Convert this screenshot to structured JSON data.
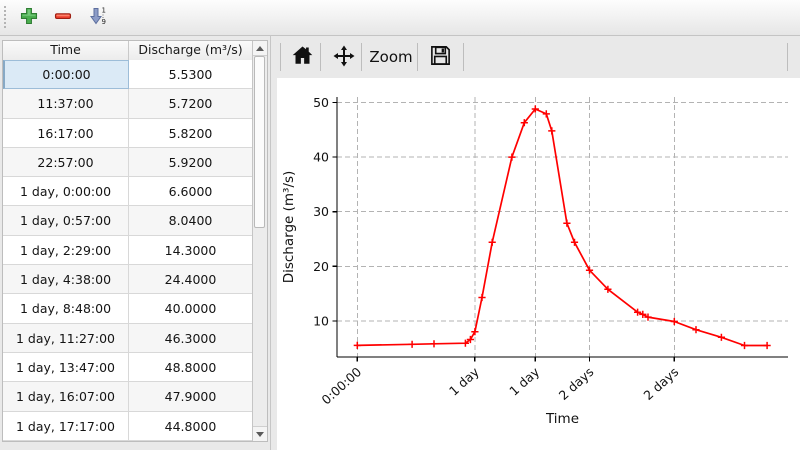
{
  "main_toolbar": {
    "add_icon": "plus-icon",
    "remove_icon": "minus-icon",
    "sort_icon": "sort-numeric-descending-icon"
  },
  "table": {
    "columns": [
      "Time",
      "Discharge (m³/s)"
    ],
    "selected_cell": {
      "row": 0,
      "column": "Time"
    },
    "rows": [
      {
        "time": "0:00:00",
        "discharge": "5.5300"
      },
      {
        "time": "11:37:00",
        "discharge": "5.7200"
      },
      {
        "time": "16:17:00",
        "discharge": "5.8200"
      },
      {
        "time": "22:57:00",
        "discharge": "5.9200"
      },
      {
        "time": "1 day, 0:00:00",
        "discharge": "6.6000"
      },
      {
        "time": "1 day, 0:57:00",
        "discharge": "8.0400"
      },
      {
        "time": "1 day, 2:29:00",
        "discharge": "14.3000"
      },
      {
        "time": "1 day, 4:38:00",
        "discharge": "24.4000"
      },
      {
        "time": "1 day, 8:48:00",
        "discharge": "40.0000"
      },
      {
        "time": "1 day, 11:27:00",
        "discharge": "46.3000"
      },
      {
        "time": "1 day, 13:47:00",
        "discharge": "48.8000"
      },
      {
        "time": "1 day, 16:07:00",
        "discharge": "47.9000"
      },
      {
        "time": "1 day, 17:17:00",
        "discharge": "44.8000"
      }
    ]
  },
  "chart_toolbar": {
    "home_icon": "home-icon",
    "pan_icon": "pan-arrows-icon",
    "zoom_label": "Zoom",
    "save_icon": "save-floppy-icon"
  },
  "chart_data": {
    "type": "line",
    "title": "",
    "xlabel": "Time",
    "ylabel": "Discharge (m³/s)",
    "grid": true,
    "grid_style": "dashed",
    "legend": "none",
    "xlim_days": [
      -0.18,
      3.81
    ],
    "ylim": [
      3.4,
      51.0
    ],
    "y_ticks": [
      10,
      20,
      30,
      40,
      50
    ],
    "x_ticks": [
      {
        "day": 0.0,
        "label": "0:00:00"
      },
      {
        "day": 1.04,
        "label": "1 day"
      },
      {
        "day": 1.574,
        "label": "1 day"
      },
      {
        "day": 2.054,
        "label": "2 days"
      },
      {
        "day": 2.804,
        "label": "2 days"
      }
    ],
    "series": [
      {
        "name": "Discharge",
        "color": "#ff0000",
        "marker": "plus",
        "x_days": [
          0.0,
          0.484,
          0.678,
          0.956,
          1.0,
          1.04,
          1.103,
          1.193,
          1.367,
          1.477,
          1.574,
          1.672,
          1.72,
          1.854,
          1.921,
          2.054,
          2.217,
          2.479,
          2.525,
          2.571,
          2.804,
          2.996,
          3.221,
          3.425,
          3.625
        ],
        "values": [
          5.53,
          5.72,
          5.82,
          5.92,
          6.6,
          8.04,
          14.3,
          24.4,
          40.0,
          46.3,
          48.8,
          47.9,
          44.8,
          27.9,
          24.4,
          19.3,
          15.8,
          11.6,
          11.2,
          10.7,
          9.9,
          8.4,
          7.0,
          5.5,
          5.5
        ]
      }
    ]
  },
  "colors": {
    "series_red": "#ff0000",
    "selection_blue": "#dbeaf6",
    "grid_gray": "#b3b3b3",
    "toolbar_bg": "#e9e9e9",
    "add_green": "#3f9948",
    "remove_red": "#e8392a",
    "sort_blue": "#8594c0"
  }
}
